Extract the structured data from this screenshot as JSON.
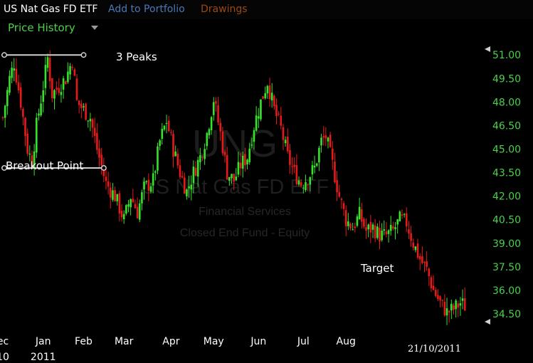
{
  "header": {
    "title": "US Nat Gas FD ETF",
    "add_portfolio": "Add to Portfolio",
    "drawings": "Drawings",
    "price_history": "Price History"
  },
  "watermark": {
    "ticker": "UNG",
    "name": "US Nat Gas FD ETF",
    "sector": "Financial Services",
    "type": "Closed End Fund - Equity"
  },
  "annotations": {
    "peaks": "3 Peaks",
    "breakout": "Breakout Point",
    "target": "Target"
  },
  "colors": {
    "up": "#35e32b",
    "down": "#e61a1a",
    "axis_text": "#4ad14a",
    "date_text": "#ffffff",
    "line": "#cfcfcf"
  },
  "chart_data": {
    "type": "candlestick",
    "ylim": [
      33.5,
      52.1
    ],
    "y_ticks": [
      "51.00",
      "49.50",
      "48.00",
      "46.50",
      "45.00",
      "43.50",
      "42.00",
      "40.50",
      "39.00",
      "37.50",
      "36.00",
      "34.50"
    ],
    "x_ticks": [
      {
        "label": "ec\n10",
        "day": 0
      },
      {
        "label": "Jan\n2011",
        "day": 18
      },
      {
        "label": "Feb",
        "day": 36
      },
      {
        "label": "Mar",
        "day": 54
      },
      {
        "label": "Apr",
        "day": 75
      },
      {
        "label": "May",
        "day": 94
      },
      {
        "label": "Jun",
        "day": 114
      },
      {
        "label": "Jul",
        "day": 134
      },
      {
        "label": "Aug",
        "day": 153
      }
    ],
    "last_date": "21/10/2011",
    "keypoints": [
      [
        0,
        47.0
      ],
      [
        3,
        49.5
      ],
      [
        5,
        50.5
      ],
      [
        8,
        48.0
      ],
      [
        11,
        45.0
      ],
      [
        13,
        44.2
      ],
      [
        15,
        46.5
      ],
      [
        18,
        49.0
      ],
      [
        20,
        50.8
      ],
      [
        22,
        48.5
      ],
      [
        25,
        49.0
      ],
      [
        28,
        49.5
      ],
      [
        31,
        50.7
      ],
      [
        33,
        48.0
      ],
      [
        36,
        47.5
      ],
      [
        39,
        47.0
      ],
      [
        42,
        45.0
      ],
      [
        46,
        42.8
      ],
      [
        50,
        42.0
      ],
      [
        54,
        40.5
      ],
      [
        57,
        42.0
      ],
      [
        60,
        41.0
      ],
      [
        63,
        42.5
      ],
      [
        67,
        43.0
      ],
      [
        70,
        45.5
      ],
      [
        73,
        46.8
      ],
      [
        76,
        45.0
      ],
      [
        79,
        43.5
      ],
      [
        82,
        42.3
      ],
      [
        85,
        43.5
      ],
      [
        88,
        44.5
      ],
      [
        91,
        46.0
      ],
      [
        94,
        48.2
      ],
      [
        97,
        46.0
      ],
      [
        100,
        43.5
      ],
      [
        103,
        43.0
      ],
      [
        106,
        44.0
      ],
      [
        109,
        44.5
      ],
      [
        112,
        46.5
      ],
      [
        115,
        48.0
      ],
      [
        118,
        49.3
      ],
      [
        121,
        47.5
      ],
      [
        124,
        46.3
      ],
      [
        127,
        44.5
      ],
      [
        130,
        43.5
      ],
      [
        133,
        42.8
      ],
      [
        136,
        43.2
      ],
      [
        139,
        43.8
      ],
      [
        142,
        45.5
      ],
      [
        144,
        45.8
      ],
      [
        147,
        44.0
      ],
      [
        150,
        42.0
      ],
      [
        153,
        40.5
      ],
      [
        156,
        40.0
      ],
      [
        159,
        40.8
      ],
      [
        162,
        39.8
      ],
      [
        165,
        40.0
      ],
      [
        168,
        39.5
      ],
      [
        171,
        39.5
      ],
      [
        174,
        39.8
      ],
      [
        177,
        40.5
      ],
      [
        180,
        40.3
      ],
      [
        183,
        39.0
      ],
      [
        186,
        38.0
      ],
      [
        189,
        37.3
      ],
      [
        192,
        36.0
      ],
      [
        195,
        35.2
      ],
      [
        198,
        34.6
      ],
      [
        201,
        34.8
      ],
      [
        204,
        35.2
      ],
      [
        206,
        35.0
      ]
    ],
    "lines": [
      {
        "name": "peaks-line",
        "x1": 0,
        "y1": 51.0,
        "x2": 36,
        "y2": 51.0
      },
      {
        "name": "breakout-line",
        "x1": 0,
        "y1": 43.8,
        "x2": 45,
        "y2": 43.8
      }
    ]
  }
}
